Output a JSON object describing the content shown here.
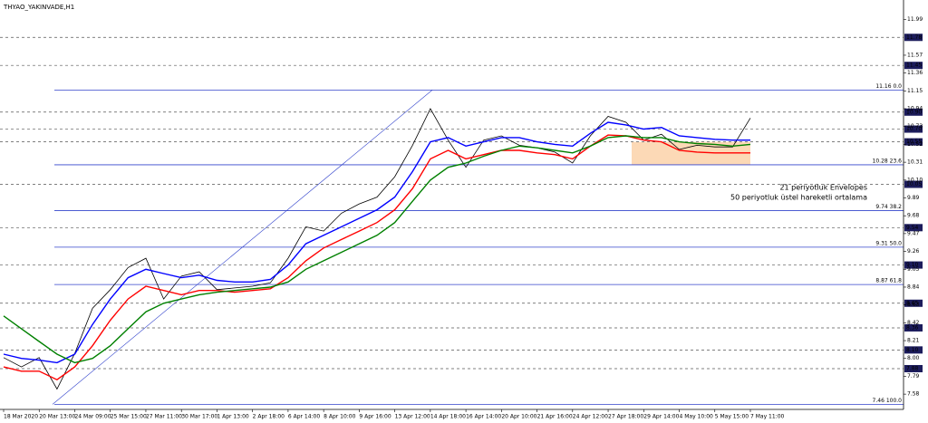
{
  "chart_data": {
    "type": "line",
    "title": "THYAO_YAKINVADE,H1",
    "categories": [
      "18 Mar 2020",
      null,
      "20 Mar 13:00",
      null,
      "24 Mar 09:00",
      null,
      "25 Mar 15:00",
      null,
      "27 Mar 11:00",
      null,
      "30 Mar 17:00",
      null,
      "1 Apr 13:00",
      null,
      "2 Apr 18:00",
      null,
      "6 Apr 14:00",
      null,
      "8 Apr 10:00",
      null,
      "9 Apr 16:00",
      null,
      "13 Apr 12:00",
      null,
      "14 Apr 18:00",
      null,
      "16 Apr 14:00",
      null,
      "20 Apr 10:00",
      null,
      "21 Apr 16:00",
      null,
      "24 Apr 12:00",
      null,
      "27 Apr 18:00",
      null,
      "29 Apr 14:00",
      null,
      "4 May 10:00",
      null,
      "5 May 15:00",
      null,
      "7 May 11:00"
    ],
    "series": [
      {
        "color": "#000000",
        "values": [
          8.01,
          7.9,
          8.01,
          7.64,
          8.06,
          8.59,
          8.81,
          9.07,
          9.18,
          8.7,
          8.97,
          9.02,
          8.81,
          8.83,
          8.85,
          8.89,
          9.18,
          9.55,
          9.5,
          9.71,
          9.82,
          9.9,
          10.14,
          10.51,
          10.94,
          10.57,
          10.25,
          10.57,
          10.62,
          10.51,
          10.48,
          10.43,
          10.3,
          10.62,
          10.85,
          10.78,
          10.57,
          10.64,
          10.46,
          10.51,
          10.49,
          10.49,
          10.83
        ]
      },
      {
        "name": "21 periyotluk Envelopes",
        "color": "#0000ff",
        "values": [
          8.05,
          8.0,
          7.98,
          7.95,
          8.05,
          8.4,
          8.7,
          8.95,
          9.05,
          9.0,
          8.95,
          8.98,
          8.92,
          8.9,
          8.9,
          8.93,
          9.1,
          9.35,
          9.45,
          9.55,
          9.65,
          9.75,
          9.9,
          10.2,
          10.55,
          10.6,
          10.5,
          10.55,
          10.6,
          10.6,
          10.55,
          10.52,
          10.5,
          10.65,
          10.78,
          10.75,
          10.7,
          10.72,
          10.62,
          10.6,
          10.58,
          10.57,
          10.57
        ]
      },
      {
        "color": "#ff0000",
        "values": [
          7.9,
          7.85,
          7.85,
          7.75,
          7.9,
          8.15,
          8.45,
          8.7,
          8.85,
          8.8,
          8.75,
          8.8,
          8.8,
          8.78,
          8.8,
          8.82,
          8.95,
          9.15,
          9.3,
          9.4,
          9.5,
          9.6,
          9.75,
          10.0,
          10.35,
          10.45,
          10.35,
          10.4,
          10.45,
          10.45,
          10.42,
          10.4,
          10.35,
          10.5,
          10.63,
          10.62,
          10.57,
          10.55,
          10.45,
          10.43,
          10.42,
          10.42,
          10.42
        ]
      },
      {
        "name": "50 periyotluk üstel hareketli ortalama",
        "color": "#008000",
        "values": [
          8.5,
          8.35,
          8.2,
          8.05,
          7.95,
          8.0,
          8.15,
          8.35,
          8.55,
          8.65,
          8.7,
          8.75,
          8.78,
          8.8,
          8.82,
          8.84,
          8.9,
          9.05,
          9.15,
          9.25,
          9.35,
          9.45,
          9.6,
          9.85,
          10.1,
          10.25,
          10.3,
          10.38,
          10.45,
          10.5,
          10.48,
          10.45,
          10.42,
          10.5,
          10.6,
          10.62,
          10.6,
          10.6,
          10.55,
          10.53,
          10.52,
          10.5,
          10.52
        ]
      }
    ],
    "ylim": [
      7.4,
      12.22
    ],
    "yticks": [
      11.99,
      11.57,
      11.36,
      11.15,
      10.94,
      10.73,
      10.52,
      10.31,
      {
        "value": 10.1,
        "label": "10.10"
      },
      9.89,
      9.68,
      9.47,
      9.26,
      9.05,
      8.84,
      8.63,
      8.42,
      8.21,
      {
        "value": 8,
        "label": "8.00"
      },
      7.79,
      7.58
    ],
    "levels": [
      11.78,
      11.45,
      {
        "value": 10.9,
        "label": "10.90"
      },
      {
        "value": 10.7,
        "label": "10.70"
      },
      10.55,
      10.05,
      9.54,
      {
        "value": 9.1,
        "label": "9.10"
      },
      8.65,
      8.36,
      {
        "value": 8.1,
        "label": "8.10"
      },
      7.88
    ],
    "fibonacci": [
      {
        "value": 11.16,
        "label": "11.16 0.0"
      },
      {
        "value": 10.28,
        "label": "10.28 23.6"
      },
      {
        "value": 9.74,
        "label": "9.74 38.2"
      },
      {
        "value": 9.31,
        "label": "9.31 50.0"
      },
      {
        "value": 8.87,
        "label": "8.87 61.8"
      },
      {
        "value": 7.46,
        "label": "7.46 100.0"
      }
    ],
    "highlight_range": [
      10.28,
      10.55
    ],
    "highlight_color": "#fcd9b6"
  }
}
